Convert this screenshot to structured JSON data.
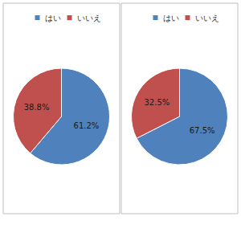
{
  "chart_data": [
    {
      "type": "pie",
      "categories": [
        "はい",
        "いいえ"
      ],
      "values": [
        61.2,
        38.8
      ],
      "value_labels": [
        "61.2%",
        "38.8%"
      ],
      "colors": [
        "#4f81bd",
        "#c0504d"
      ],
      "data_labels": true,
      "legend": "top"
    },
    {
      "type": "pie",
      "categories": [
        "はい",
        "いいえ"
      ],
      "values": [
        67.5,
        32.5
      ],
      "value_labels": [
        "67.5%",
        "32.5%"
      ],
      "colors": [
        "#4f81bd",
        "#c0504d"
      ],
      "data_labels": true,
      "legend": "top"
    }
  ]
}
